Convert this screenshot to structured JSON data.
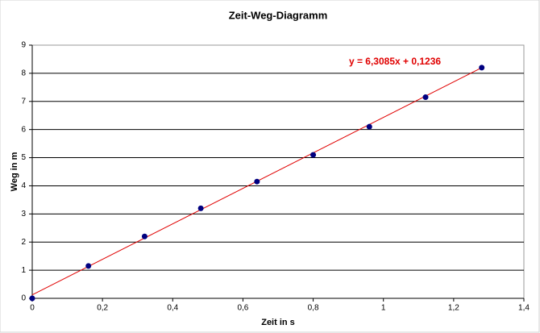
{
  "chart_data": {
    "type": "scatter",
    "title": "Zeit-Weg-Diagramm",
    "x_label": "Zeit in s",
    "y_label": "Weg in m",
    "series": [
      {
        "name": "Weg",
        "color": "#000080",
        "x": [
          0,
          0.16,
          0.32,
          0.48,
          0.64,
          0.8,
          0.96,
          1.12,
          1.28
        ],
        "values": [
          0,
          1.15,
          2.2,
          3.2,
          4.15,
          5.1,
          6.1,
          7.15,
          8.2
        ]
      }
    ],
    "trendline": {
      "slope": 6.3085,
      "intercept": 0.1236,
      "color": "#e00000",
      "label": "y = 6,3085x + 0,1236"
    },
    "xlim": [
      0,
      1.4
    ],
    "xticks": [
      0,
      {
        "value": 0.2,
        "label": "0,2"
      },
      {
        "value": 0.4,
        "label": "0,4"
      },
      {
        "value": 0.6,
        "label": "0,6"
      },
      {
        "value": 0.8,
        "label": "0,8"
      },
      1,
      {
        "value": 1.2,
        "label": "1,2"
      },
      {
        "value": 1.4,
        "label": "1,4"
      }
    ],
    "ylim": [
      0,
      9
    ],
    "yticks": [
      0,
      1,
      2,
      3,
      4,
      5,
      6,
      7,
      8,
      9
    ],
    "grid": true
  }
}
